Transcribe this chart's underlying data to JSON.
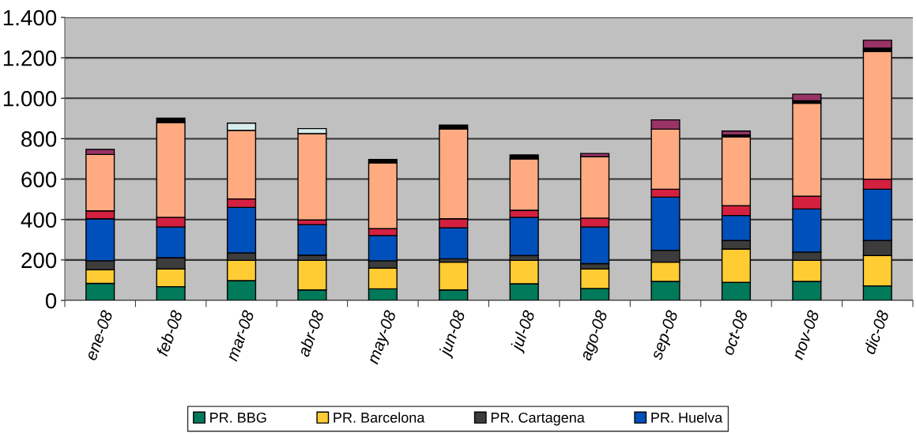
{
  "chart_data": {
    "type": "bar",
    "stacked": true,
    "categories": [
      "ene-08",
      "feb-08",
      "mar-08",
      "abr-08",
      "may-08",
      "jun-08",
      "jul-08",
      "ago-08",
      "sep-08",
      "oct-08",
      "nov-08",
      "dic-08"
    ],
    "series": [
      {
        "name": "PR. BBG",
        "color": "#007a5a",
        "values": [
          84,
          68,
          98,
          52,
          57,
          52,
          82,
          59,
          94,
          89,
          94,
          72
        ]
      },
      {
        "name": "PR. Barcelona",
        "color": "#ffcc33",
        "values": [
          68,
          88,
          100,
          146,
          103,
          137,
          116,
          97,
          95,
          165,
          104,
          150
        ]
      },
      {
        "name": "PR. Cartagena",
        "color": "#3c3c3c",
        "values": [
          44,
          55,
          37,
          26,
          36,
          17,
          24,
          26,
          59,
          42,
          41,
          74
        ]
      },
      {
        "name": "PR. Huelva",
        "color": "#0050bb",
        "values": [
          208,
          152,
          225,
          151,
          125,
          153,
          189,
          181,
          263,
          124,
          213,
          254
        ]
      },
      {
        "color": "#d42040",
        "values": [
          39,
          48,
          42,
          23,
          34,
          45,
          35,
          44,
          39,
          49,
          63,
          50
        ]
      },
      {
        "color": "#ffaa80",
        "values": [
          279,
          469,
          339,
          427,
          325,
          443,
          254,
          304,
          297,
          339,
          460,
          632
        ]
      },
      {
        "color": "#d8ecec",
        "values": [
          null,
          null,
          36,
          25,
          null,
          null,
          null,
          null,
          null,
          null,
          null,
          null
        ]
      },
      {
        "color": "#000000",
        "values": [
          null,
          22,
          null,
          null,
          17,
          20,
          20,
          null,
          null,
          11,
          13,
          16
        ]
      },
      {
        "color": "#993366",
        "values": [
          25,
          null,
          null,
          null,
          null,
          null,
          null,
          16,
          46,
          19,
          32,
          39
        ]
      }
    ],
    "ylim": [
      0,
      1400
    ],
    "yticks": [
      0,
      200,
      400,
      600,
      800,
      {
        "value": 1000,
        "label": "1.000"
      },
      {
        "value": 1200,
        "label": "1.200"
      },
      {
        "value": 1400,
        "label": "1.400"
      }
    ],
    "grid": "y",
    "legend": "bottom"
  }
}
